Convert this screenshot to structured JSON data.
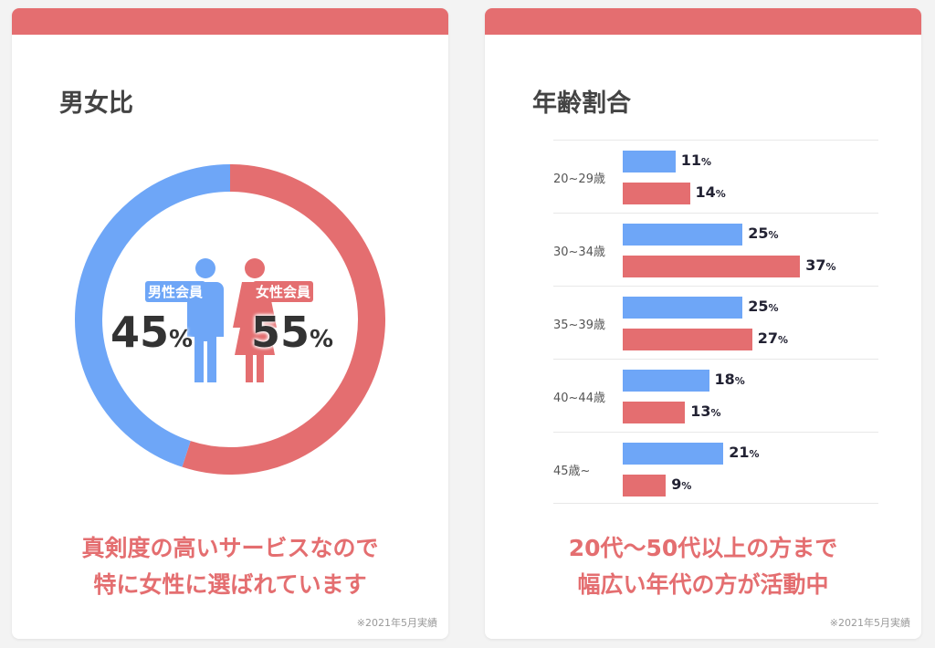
{
  "gender": {
    "title": "男女比",
    "male_label": "男性会員",
    "female_label": "女性会員",
    "male_pct": "45",
    "female_pct": "55",
    "pct_sign": "%",
    "caption_1": "真剣度の高いサービスなので",
    "caption_2": "特に女性に選ばれています",
    "note": "※2021年5月実績"
  },
  "age": {
    "title": "年齢割合",
    "caption_1": "20代〜50代以上の方まで",
    "caption_2": "幅広い年代の方が活動中",
    "note": "※2021年5月実績"
  },
  "colors": {
    "male": "#6ea6f7",
    "female": "#e46e70"
  },
  "chart_data": [
    {
      "type": "pie",
      "donut": true,
      "categories": [
        "男性会員",
        "女性会員"
      ],
      "values": [
        45,
        55
      ],
      "colors": [
        "#6ea6f7",
        "#e46e70"
      ]
    },
    {
      "type": "bar",
      "orientation": "horizontal",
      "categories": [
        "20~29歳",
        "30~34歳",
        "35~39歳",
        "40~44歳",
        "45歳~"
      ],
      "series": [
        {
          "values": [
            11,
            25,
            25,
            18,
            21
          ],
          "color": "#6ea6f7"
        },
        {
          "values": [
            14,
            37,
            27,
            13,
            9
          ],
          "color": "#e46e70"
        }
      ],
      "unit": "%"
    }
  ]
}
